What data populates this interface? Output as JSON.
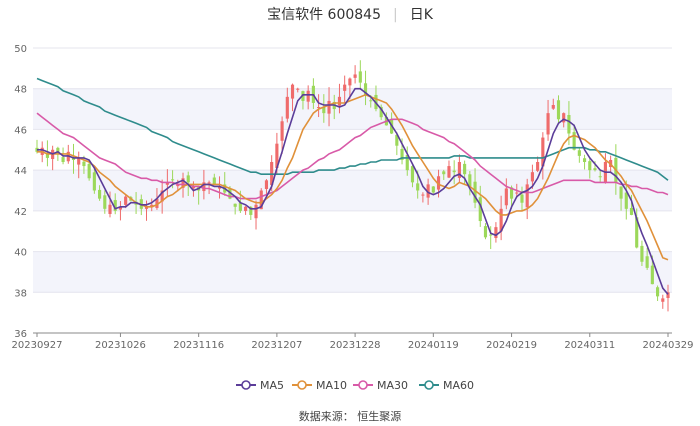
{
  "title": {
    "stock": "宝信软件 600845",
    "period": "日K"
  },
  "source": "数据来源： 恒生聚源",
  "chart_data": {
    "type": "candlestick",
    "ylim": [
      36,
      50
    ],
    "yticks": [
      36,
      38,
      40,
      42,
      44,
      46,
      48,
      50
    ],
    "xticks": [
      "20230927",
      "20231026",
      "20231116",
      "20231207",
      "20231228",
      "20240119",
      "20240219",
      "20240311",
      "20240329"
    ],
    "num_days": 122,
    "xtick_index": [
      0,
      16,
      31,
      46,
      61,
      76,
      91,
      106,
      121
    ],
    "colors": {
      "up": "#ef6b6b",
      "down": "#9cd85a",
      "ma5": "#5b3d99",
      "ma10": "#e0913a",
      "ma30": "#d85aa8",
      "ma60": "#2f8c8c"
    },
    "legend": [
      "MA5",
      "MA10",
      "MA30",
      "MA60"
    ],
    "closes": [
      44.9,
      45.1,
      44.6,
      45.0,
      44.8,
      44.4,
      44.9,
      44.5,
      44.6,
      44.2,
      43.6,
      43.0,
      42.6,
      42.1,
      42.3,
      42.0,
      42.2,
      42.7,
      42.5,
      42.3,
      42.1,
      42.2,
      42.3,
      42.6,
      43.0,
      43.4,
      43.5,
      43.3,
      43.6,
      43.4,
      43.2,
      43.0,
      43.4,
      43.4,
      43.3,
      43.2,
      42.9,
      42.6,
      42.2,
      42.0,
      42.2,
      41.8,
      42.3,
      43.0,
      43.5,
      44.4,
      45.3,
      46.4,
      47.6,
      48.2,
      48.0,
      47.4,
      47.9,
      47.3,
      47.1,
      46.8,
      47.4,
      47.0,
      47.6,
      48.2,
      48.5,
      48.7,
      48.3,
      47.7,
      47.4,
      47.0,
      46.6,
      46.2,
      45.8,
      45.2,
      44.5,
      44.0,
      43.4,
      43.0,
      42.8,
      43.3,
      42.9,
      43.7,
      43.8,
      44.2,
      43.9,
      44.4,
      43.8,
      43.2,
      42.4,
      41.5,
      40.7,
      40.8,
      41.2,
      42.1,
      43.1,
      42.6,
      42.9,
      42.4,
      43.3,
      43.9,
      44.4,
      45.6,
      46.8,
      47.2,
      46.5,
      46.8,
      45.8,
      45.0,
      44.7,
      44.4,
      44.0,
      44.0,
      43.7,
      44.4,
      44.5,
      43.4,
      42.6,
      42.1,
      41.8,
      40.2,
      39.5,
      39.2,
      38.4,
      37.8,
      37.7,
      38.0
    ],
    "ma5": [
      45.0,
      45.0,
      44.9,
      44.8,
      44.9,
      44.7,
      44.7,
      44.6,
      44.6,
      44.6,
      44.5,
      44.1,
      43.6,
      43.1,
      42.6,
      42.1,
      42.2,
      42.2,
      42.4,
      42.4,
      42.3,
      42.3,
      42.4,
      42.6,
      42.9,
      43.1,
      43.3,
      43.4,
      43.5,
      43.3,
      43.0,
      43.1,
      43.3,
      43.3,
      43.2,
      43.2,
      43.1,
      42.9,
      42.7,
      42.4,
      42.3,
      42.1,
      42.1,
      42.2,
      42.7,
      43.2,
      44.1,
      44.9,
      45.8,
      46.6,
      47.4,
      47.7,
      47.7,
      47.7,
      47.3,
      47.2,
      47.2,
      47.2,
      47.1,
      47.2,
      47.6,
      48.0,
      48.0,
      47.8,
      47.6,
      47.3,
      47.0,
      46.6,
      46.2,
      45.8,
      45.3,
      44.8,
      44.3,
      43.8,
      43.2,
      42.9,
      42.8,
      42.9,
      43.1,
      43.4,
      43.7,
      43.8,
      43.6,
      43.1,
      42.7,
      42.3,
      41.6,
      40.9,
      40.8,
      41.0,
      41.5,
      42.2,
      42.7,
      42.9,
      43.0,
      43.2,
      43.6,
      44.2,
      45.0,
      45.8,
      46.3,
      46.5,
      46.4,
      46.2,
      45.6,
      45.0,
      44.6,
      44.3,
      44.0,
      43.9,
      43.9,
      43.7,
      43.4,
      43.0,
      42.5,
      41.6,
      40.9,
      40.3,
      39.6,
      38.9,
      38.2,
      37.9
    ],
    "ma10": [
      44.9,
      44.9,
      44.8,
      44.8,
      44.8,
      44.8,
      44.8,
      44.7,
      44.6,
      44.5,
      44.4,
      44.2,
      43.9,
      43.7,
      43.5,
      43.2,
      43.0,
      42.8,
      42.6,
      42.4,
      42.3,
      42.2,
      42.2,
      42.3,
      42.5,
      42.7,
      42.8,
      43.0,
      43.2,
      43.3,
      43.3,
      43.3,
      43.3,
      43.3,
      43.3,
      43.3,
      43.2,
      43.1,
      43.0,
      42.8,
      42.6,
      42.5,
      42.4,
      42.4,
      42.6,
      42.8,
      43.1,
      43.5,
      44.1,
      44.6,
      45.3,
      46.0,
      46.4,
      46.8,
      47.0,
      47.1,
      47.2,
      47.3,
      47.3,
      47.3,
      47.4,
      47.5,
      47.6,
      47.7,
      47.6,
      47.5,
      47.4,
      47.3,
      47.0,
      46.6,
      46.2,
      45.7,
      45.2,
      44.8,
      44.4,
      44.0,
      43.6,
      43.3,
      43.2,
      43.1,
      43.2,
      43.4,
      43.3,
      43.2,
      43.0,
      42.8,
      42.6,
      42.3,
      42.0,
      41.8,
      41.8,
      41.9,
      42.0,
      42.0,
      42.1,
      42.3,
      42.6,
      43.1,
      43.6,
      44.2,
      44.8,
      45.3,
      45.6,
      45.7,
      45.6,
      45.5,
      45.3,
      45.1,
      44.8,
      44.5,
      44.3,
      44.0,
      43.7,
      43.3,
      43.0,
      42.5,
      42.0,
      41.5,
      40.9,
      40.3,
      39.7,
      39.6
    ],
    "ma30": [
      46.8,
      46.6,
      46.4,
      46.2,
      46.0,
      45.8,
      45.7,
      45.6,
      45.4,
      45.2,
      45.0,
      44.8,
      44.6,
      44.5,
      44.4,
      44.3,
      44.1,
      43.9,
      43.8,
      43.7,
      43.6,
      43.6,
      43.5,
      43.5,
      43.4,
      43.4,
      43.4,
      43.3,
      43.3,
      43.3,
      43.2,
      43.2,
      43.1,
      43.1,
      43.0,
      42.9,
      42.8,
      42.7,
      42.7,
      42.6,
      42.6,
      42.6,
      42.6,
      42.7,
      42.8,
      42.9,
      43.0,
      43.2,
      43.4,
      43.6,
      43.8,
      44.0,
      44.1,
      44.3,
      44.5,
      44.6,
      44.8,
      44.9,
      45.0,
      45.2,
      45.4,
      45.6,
      45.7,
      45.9,
      46.1,
      46.2,
      46.3,
      46.4,
      46.5,
      46.5,
      46.5,
      46.4,
      46.3,
      46.2,
      46.0,
      45.9,
      45.8,
      45.7,
      45.6,
      45.4,
      45.3,
      45.1,
      44.9,
      44.7,
      44.5,
      44.2,
      44.0,
      43.8,
      43.6,
      43.4,
      43.2,
      43.1,
      43.0,
      42.9,
      42.9,
      42.9,
      43.0,
      43.1,
      43.2,
      43.3,
      43.4,
      43.5,
      43.5,
      43.5,
      43.5,
      43.5,
      43.5,
      43.4,
      43.4,
      43.4,
      43.4,
      43.4,
      43.3,
      43.3,
      43.2,
      43.2,
      43.1,
      43.1,
      43.0,
      42.9,
      42.9,
      42.8
    ],
    "ma60": [
      48.5,
      48.4,
      48.3,
      48.2,
      48.1,
      47.9,
      47.8,
      47.7,
      47.6,
      47.4,
      47.3,
      47.2,
      47.1,
      46.9,
      46.8,
      46.7,
      46.6,
      46.5,
      46.4,
      46.3,
      46.2,
      46.1,
      45.9,
      45.8,
      45.7,
      45.6,
      45.4,
      45.3,
      45.2,
      45.1,
      45.0,
      44.9,
      44.8,
      44.7,
      44.6,
      44.5,
      44.4,
      44.3,
      44.2,
      44.1,
      44.0,
      43.9,
      43.9,
      43.8,
      43.8,
      43.8,
      43.8,
      43.8,
      43.8,
      43.9,
      43.9,
      43.9,
      43.9,
      43.9,
      44.0,
      44.0,
      44.0,
      44.0,
      44.1,
      44.1,
      44.2,
      44.2,
      44.3,
      44.3,
      44.4,
      44.4,
      44.5,
      44.5,
      44.5,
      44.5,
      44.6,
      44.6,
      44.6,
      44.6,
      44.6,
      44.6,
      44.6,
      44.6,
      44.6,
      44.6,
      44.7,
      44.7,
      44.7,
      44.6,
      44.6,
      44.6,
      44.6,
      44.6,
      44.6,
      44.6,
      44.6,
      44.6,
      44.6,
      44.6,
      44.6,
      44.6,
      44.6,
      44.6,
      44.7,
      44.8,
      44.9,
      45.0,
      45.1,
      45.1,
      45.1,
      45.1,
      45.0,
      45.0,
      44.9,
      44.9,
      44.8,
      44.7,
      44.6,
      44.5,
      44.4,
      44.3,
      44.2,
      44.1,
      44.0,
      43.9,
      43.7,
      43.5
    ]
  }
}
